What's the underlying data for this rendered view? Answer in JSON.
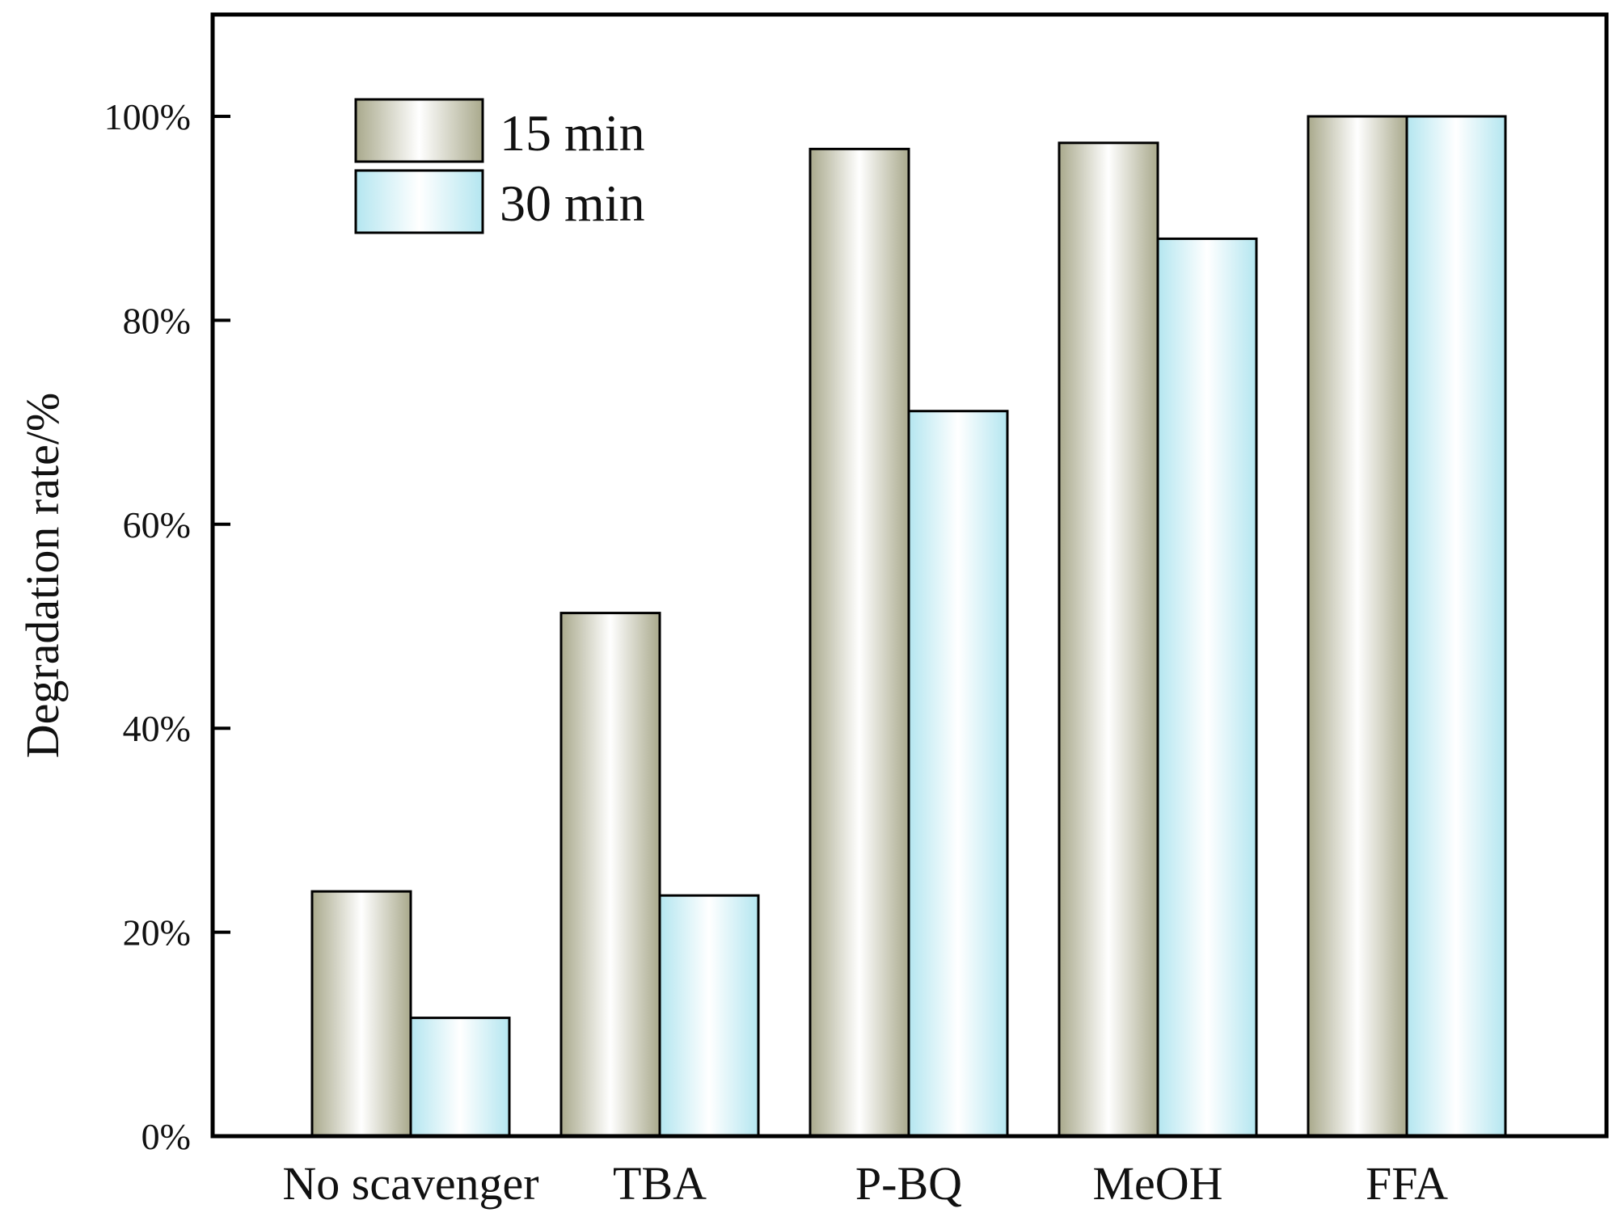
{
  "chart_data": {
    "type": "bar",
    "title": "",
    "xlabel": "",
    "ylabel": "Degradation rate/%",
    "ylim": [
      0,
      110
    ],
    "yticks": [
      0,
      20,
      40,
      60,
      80,
      100
    ],
    "ytick_labels": [
      "0%",
      "20%",
      "40%",
      "60%",
      "80%",
      "100%"
    ],
    "categories": [
      "No scavenger",
      "TBA",
      "P-BQ",
      "MeOH",
      "FFA"
    ],
    "series": [
      {
        "name": "15 min",
        "values": [
          24.0,
          51.3,
          96.8,
          97.4,
          100.0
        ],
        "color": "#b8b89a"
      },
      {
        "name": "30 min",
        "values": [
          11.6,
          23.6,
          71.1,
          88.0,
          100.0
        ],
        "color": "#bde9f2"
      }
    ],
    "legend": {
      "position": "top-left",
      "entries": [
        "15 min",
        "30 min"
      ]
    },
    "grid": false
  }
}
